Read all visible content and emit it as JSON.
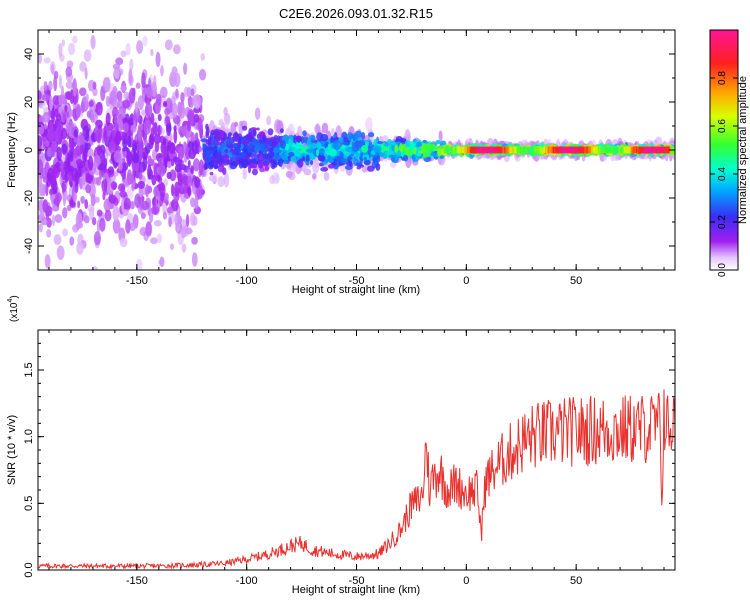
{
  "title": "C2E6.2026.093.01.32.R15",
  "chart_data": [
    {
      "type": "heatmap",
      "xlabel": "Height of straight line (km)",
      "ylabel": "Frequency (Hz)",
      "xlim": [
        -195,
        95
      ],
      "ylim": [
        -50,
        50
      ],
      "xticks": [
        -150,
        -100,
        -50,
        0,
        50
      ],
      "yticks": [
        40,
        20,
        0,
        -20,
        -40
      ],
      "colorbar": {
        "label": "Normalized spectral amplitude",
        "range": [
          0,
          1
        ],
        "ticks": [
          "0.0",
          "0.2",
          "0.4",
          "0.6",
          "0.8"
        ],
        "colors": [
          "#ffffff",
          "#a020f0",
          "#3b2cf5",
          "#00a8ff",
          "#00ffd0",
          "#33ff33",
          "#d8ff00",
          "#ffa500",
          "#ff2020",
          "#ff1493"
        ]
      },
      "regions": [
        {
          "x": [
            -195,
            -120
          ],
          "freq_spread": 50,
          "amplitude": 0.15
        },
        {
          "x": [
            -120,
            -85
          ],
          "freq_spread": 12,
          "amplitude": 0.3
        },
        {
          "x": [
            -85,
            -40
          ],
          "freq_spread": 9,
          "amplitude": 0.45
        },
        {
          "x": [
            -40,
            -10
          ],
          "freq_spread": 5,
          "amplitude": 0.6
        },
        {
          "x": [
            -10,
            92
          ],
          "freq_spread": 2,
          "amplitude": 0.85
        }
      ]
    },
    {
      "type": "line",
      "xlabel": "Height of straight line (km)",
      "ylabel": "SNR (10 * v/v)",
      "multiplier": "(x10",
      "multiplier_exp": "4",
      "multiplier_close": ")",
      "xlim": [
        -195,
        95
      ],
      "ylim": [
        0,
        1.8
      ],
      "xticks": [
        -150,
        -100,
        -50,
        0,
        50
      ],
      "yticks": [
        "0.0",
        "0.5",
        "1.0",
        "1.5"
      ],
      "series": [
        {
          "color": "#e8302c",
          "x": [
            -195,
            -180,
            -160,
            -140,
            -120,
            -110,
            -100,
            -90,
            -80,
            -75,
            -70,
            -60,
            -50,
            -40,
            -35,
            -30,
            -25,
            -20,
            -18,
            -17,
            -15,
            -12,
            -10,
            -8,
            -5,
            0,
            5,
            7,
            8,
            10,
            15,
            20,
            25,
            30,
            40,
            50,
            60,
            70,
            80,
            85,
            88,
            89,
            90,
            91,
            92,
            93,
            95
          ],
          "y": [
            0.03,
            0.03,
            0.03,
            0.03,
            0.04,
            0.05,
            0.08,
            0.12,
            0.18,
            0.2,
            0.15,
            0.12,
            0.1,
            0.12,
            0.2,
            0.3,
            0.48,
            0.55,
            1.0,
            0.6,
            0.7,
            0.75,
            0.65,
            0.6,
            0.65,
            0.58,
            0.6,
            0.25,
            0.6,
            0.7,
            0.8,
            0.88,
            0.95,
            1.0,
            1.03,
            1.04,
            1.05,
            1.05,
            1.06,
            1.07,
            1.08,
            0.55,
            1.2,
            1.1,
            1.05,
            1.1,
            1.08
          ]
        }
      ]
    }
  ]
}
